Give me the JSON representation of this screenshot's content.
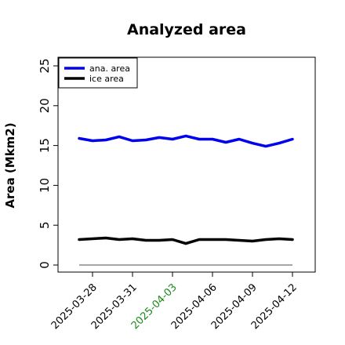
{
  "chart_data": {
    "type": "line",
    "title": "Analyzed area",
    "xlabel": "",
    "ylabel": "Area (Mkm2)",
    "ylim": [
      0,
      26
    ],
    "yticks": [
      "0",
      "5",
      "10",
      "15",
      "20",
      "25"
    ],
    "x": [
      "2025-03-27",
      "2025-03-28",
      "2025-03-29",
      "2025-03-30",
      "2025-03-31",
      "2025-04-01",
      "2025-04-02",
      "2025-04-03",
      "2025-04-04",
      "2025-04-05",
      "2025-04-06",
      "2025-04-07",
      "2025-04-08",
      "2025-04-09",
      "2025-04-10",
      "2025-04-11",
      "2025-04-12"
    ],
    "xticks": [
      "2025-03-28",
      "2025-03-31",
      "2025-04-03",
      "2025-04-06",
      "2025-04-09",
      "2025-04-12"
    ],
    "highlight_tick": "2025-04-03",
    "highlight_color": "#1a8a1a",
    "legend_position": "top-left",
    "grid": false,
    "series": [
      {
        "name": "ana. area",
        "color": "#0000ee",
        "values": [
          15.9,
          15.6,
          15.7,
          16.1,
          15.6,
          15.7,
          16.0,
          15.8,
          16.2,
          15.8,
          15.8,
          15.4,
          15.8,
          15.3,
          14.9,
          15.3,
          15.8
        ]
      },
      {
        "name": "ice area",
        "color": "#000000",
        "values": [
          3.2,
          3.3,
          3.4,
          3.2,
          3.3,
          3.1,
          3.1,
          3.2,
          2.7,
          3.2,
          3.2,
          3.2,
          3.1,
          3.0,
          3.2,
          3.3,
          3.2
        ]
      }
    ],
    "baseline": {
      "value": 0,
      "color": "#888888"
    }
  }
}
